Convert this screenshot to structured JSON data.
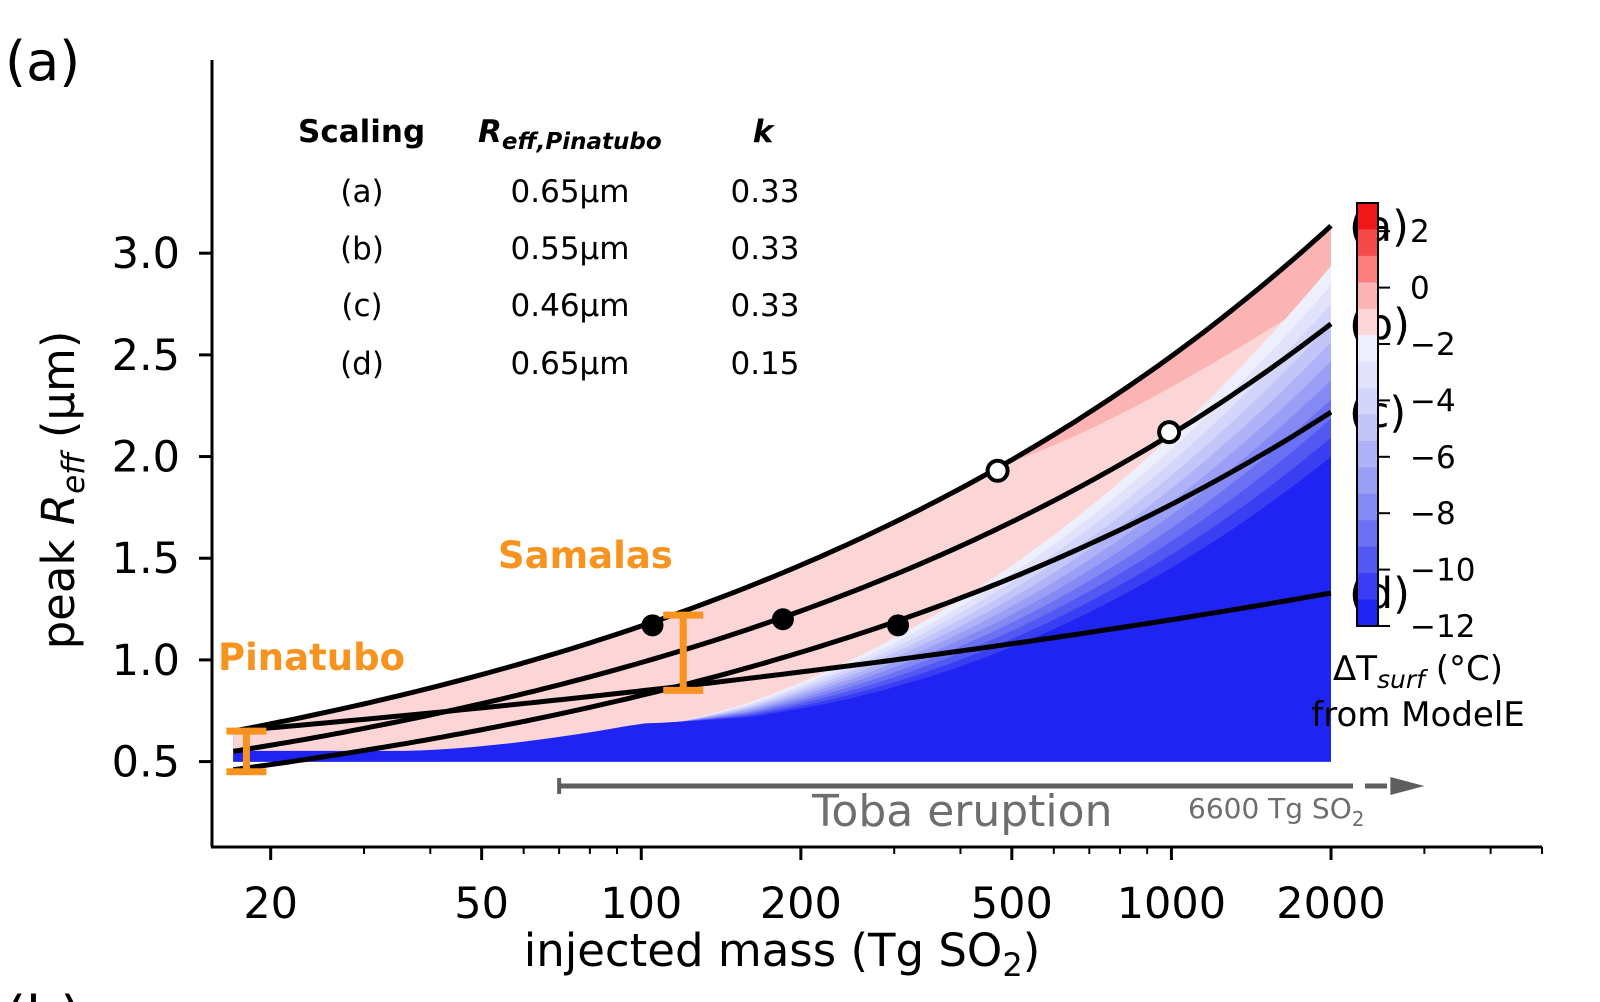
{
  "panel_label": "(a)",
  "next_panel_label": "(b)",
  "chart_data": {
    "type": "line",
    "xscale": "log",
    "xlim": [
      15.5,
      5000
    ],
    "ylim": [
      0.08,
      3.95
    ],
    "xlabel_main": "injected mass (Tg SO",
    "xlabel_sub": "2",
    "xlabel_end": ")",
    "ylabel_prefix": "peak ",
    "ylabel_var": "R",
    "ylabel_sub": "eff",
    "ylabel_suffix": " (µm)",
    "x_ticks": [
      {
        "value": 20,
        "label": "20"
      },
      {
        "value": 50,
        "label": "50"
      },
      {
        "value": 100,
        "label": "100"
      },
      {
        "value": 200,
        "label": "200"
      },
      {
        "value": 500,
        "label": "500"
      },
      {
        "value": 1000,
        "label": "1000"
      },
      {
        "value": 2000,
        "label": "2000"
      }
    ],
    "y_ticks": [
      {
        "value": 0.5,
        "label": "0.5"
      },
      {
        "value": 1.0,
        "label": "1.0"
      },
      {
        "value": 1.5,
        "label": "1.5"
      },
      {
        "value": 2.0,
        "label": "2.0"
      },
      {
        "value": 2.5,
        "label": "2.5"
      },
      {
        "value": 3.0,
        "label": "3.0"
      }
    ],
    "series": [
      {
        "name": "(a)",
        "r_pinatubo": 0.65,
        "k": 0.33
      },
      {
        "name": "(b)",
        "r_pinatubo": 0.55,
        "k": 0.33
      },
      {
        "name": "(c)",
        "r_pinatubo": 0.46,
        "k": 0.33
      },
      {
        "name": "(d)",
        "r_pinatubo": 0.65,
        "k": 0.15
      }
    ],
    "scaling_reference_mass": 17,
    "curve_x_range": [
      17,
      2000
    ],
    "filled_markers": [
      {
        "series": "(a)",
        "x": 105,
        "y": 1.17
      },
      {
        "series": "(b)",
        "x": 185,
        "y": 1.2
      },
      {
        "series": "(c)",
        "x": 305,
        "y": 1.17
      }
    ],
    "open_markers": [
      {
        "series": "(a)",
        "x": 470,
        "y": 1.93
      },
      {
        "series": "(b)",
        "x": 990,
        "y": 2.12
      }
    ],
    "contour": {
      "label_var": "ΔT",
      "label_sub": "surf",
      "label_unit": " (°C)",
      "label_line2": "from ModelE",
      "range": [
        -12,
        3
      ],
      "levels": [
        3,
        2,
        1,
        0,
        -1,
        -2,
        -3,
        -4,
        -5,
        -6,
        -7,
        -8,
        -9,
        -10,
        -11,
        -12
      ],
      "colors": [
        "#f01818",
        "#f54a4a",
        "#f97f7f",
        "#fbb3b3",
        "#fcd6d6",
        "#eeeffd",
        "#e2e3fb",
        "#d3d5fa",
        "#c2c5f8",
        "#afb2f6",
        "#9a9ef5",
        "#8489f4",
        "#6c71f3",
        "#5358f3",
        "#393ef3",
        "#1f24f3"
      ],
      "tick_values": [
        2,
        0,
        -2,
        -4,
        -6,
        -8,
        -10,
        -12
      ],
      "tick_labels": [
        "2",
        "0",
        "−2",
        "−4",
        "−6",
        "−8",
        "−10",
        "−12"
      ]
    },
    "error_bars": [
      {
        "name": "Pinatubo",
        "x": 18,
        "low": 0.45,
        "high": 0.65
      },
      {
        "name": "Samalas",
        "x": 120,
        "low": 0.85,
        "high": 1.22
      }
    ],
    "toba": {
      "label": "Toba eruption",
      "x_start": 70,
      "x_solid_end": 2000,
      "arrow_end": 3000,
      "y": 0.38,
      "note_main": "6600 Tg SO",
      "note_sub": "2"
    },
    "table": {
      "headers": [
        "Scaling",
        "R",
        "eff,Pinatubo",
        "k"
      ],
      "rows": [
        [
          "(a)",
          "0.65µm",
          "0.33"
        ],
        [
          "(b)",
          "0.55µm",
          "0.33"
        ],
        [
          "(c)",
          "0.46µm",
          "0.33"
        ],
        [
          "(d)",
          "0.65µm",
          "0.15"
        ]
      ]
    },
    "colors": {
      "curve": "#000000",
      "error_bar": "#F7931E",
      "toba": "#5f5f5f"
    }
  }
}
